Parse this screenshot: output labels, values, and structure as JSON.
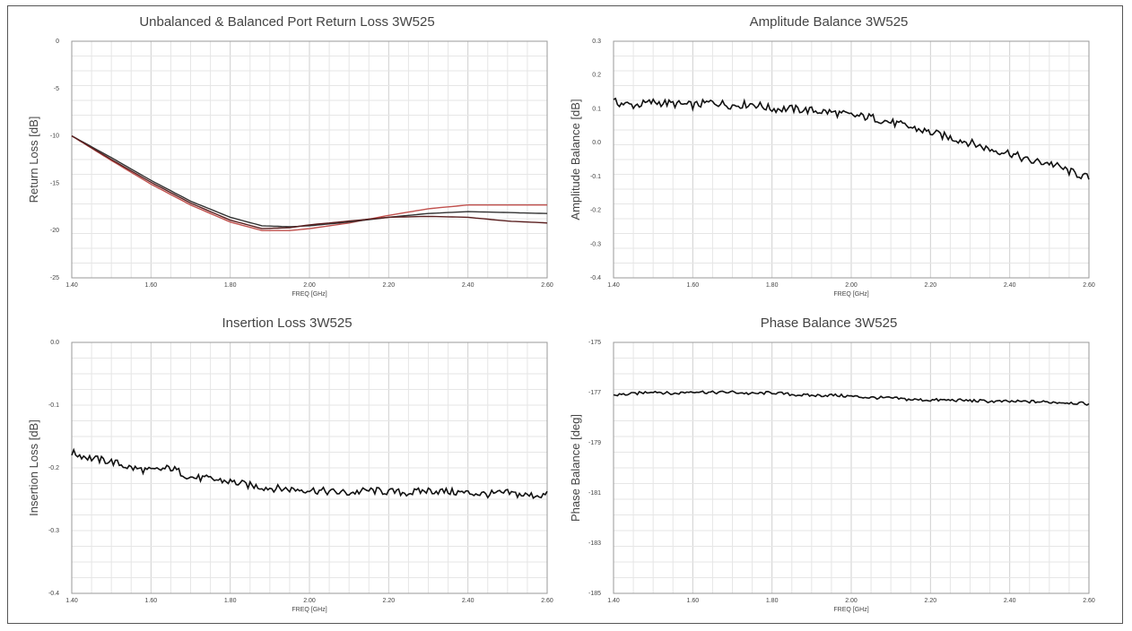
{
  "chart_data": [
    {
      "id": "rl",
      "type": "line",
      "title": "Unbalanced & Balanced Port Return Loss 3W525",
      "xlabel": "FREQ [GHz]",
      "ylabel": "Return Loss [dB]",
      "xlim": [
        1.4,
        2.6
      ],
      "ylim": [
        -25,
        0
      ],
      "xticks": [
        1.4,
        1.6,
        1.8,
        2.0,
        2.2,
        2.4,
        2.6
      ],
      "yticks": [
        0,
        -5,
        -10,
        -15,
        -20,
        -25
      ],
      "xtick_labels": [
        "1.40",
        "1.60",
        "1.80",
        "2.00",
        "2.20",
        "2.40",
        "2.60"
      ],
      "ytick_labels": [
        "0",
        "-5",
        "-10",
        "-15",
        "-20",
        "-25"
      ],
      "grid": true,
      "x": [
        1.4,
        1.5,
        1.6,
        1.7,
        1.8,
        1.88,
        1.95,
        2.0,
        2.1,
        2.2,
        2.3,
        2.4,
        2.5,
        2.6
      ],
      "series": [
        {
          "color": "#c0504d",
          "values": [
            -10.0,
            -12.6,
            -15.1,
            -17.3,
            -19.1,
            -20.0,
            -20.0,
            -19.8,
            -19.2,
            -18.4,
            -17.7,
            -17.3,
            -17.3,
            -17.3
          ]
        },
        {
          "color": "#333333",
          "values": [
            -10.0,
            -12.3,
            -14.7,
            -16.9,
            -18.6,
            -19.5,
            -19.6,
            -19.5,
            -19.1,
            -18.6,
            -18.2,
            -18.0,
            -18.1,
            -18.2
          ]
        },
        {
          "color": "#5a1f1f",
          "values": [
            -10.0,
            -12.5,
            -14.9,
            -17.1,
            -18.9,
            -19.8,
            -19.7,
            -19.4,
            -19.0,
            -18.6,
            -18.5,
            -18.6,
            -19.0,
            -19.2
          ]
        }
      ]
    },
    {
      "id": "ab",
      "type": "line",
      "title": "Amplitude Balance 3W525",
      "xlabel": "FREQ [GHz]",
      "ylabel": "Amplitude Balance [dB]",
      "xlim": [
        1.4,
        2.6
      ],
      "ylim": [
        -0.4,
        0.3
      ],
      "xticks": [
        1.4,
        1.6,
        1.8,
        2.0,
        2.2,
        2.4,
        2.6
      ],
      "yticks": [
        0.3,
        0.2,
        0.1,
        0.0,
        -0.1,
        -0.2,
        -0.3,
        -0.4
      ],
      "xtick_labels": [
        "1.40",
        "1.60",
        "1.80",
        "2.00",
        "2.20",
        "2.40",
        "2.60"
      ],
      "ytick_labels": [
        "0.3",
        "0.2",
        "0.1",
        "0.0",
        "-0.1",
        "-0.2",
        "-0.3",
        "-0.4"
      ],
      "grid": true,
      "x": [
        1.4,
        1.45,
        1.5,
        1.55,
        1.6,
        1.65,
        1.7,
        1.75,
        1.8,
        1.85,
        1.9,
        1.95,
        2.0,
        2.05,
        2.1,
        2.15,
        2.2,
        2.25,
        2.3,
        2.35,
        2.4,
        2.45,
        2.5,
        2.55,
        2.6
      ],
      "series": [
        {
          "color": "#111111",
          "values": [
            0.12,
            0.11,
            0.12,
            0.115,
            0.11,
            0.12,
            0.11,
            0.115,
            0.1,
            0.1,
            0.095,
            0.09,
            0.08,
            0.075,
            0.06,
            0.045,
            0.03,
            0.015,
            0.0,
            -0.02,
            -0.03,
            -0.055,
            -0.06,
            -0.085,
            -0.105
          ]
        }
      ]
    },
    {
      "id": "il",
      "type": "line",
      "title": "Insertion Loss 3W525",
      "xlabel": "FREQ [GHz]",
      "ylabel": "Insertion Loss [dB]",
      "xlim": [
        1.4,
        2.6
      ],
      "ylim": [
        -0.4,
        0.0
      ],
      "xticks": [
        1.4,
        1.6,
        1.8,
        2.0,
        2.2,
        2.4,
        2.6
      ],
      "yticks": [
        0.0,
        -0.1,
        -0.2,
        -0.3,
        -0.4
      ],
      "xtick_labels": [
        "1.40",
        "1.60",
        "1.80",
        "2.00",
        "2.20",
        "2.40",
        "2.60"
      ],
      "ytick_labels": [
        "0.0",
        "-0.1",
        "-0.2",
        "-0.3",
        "-0.4"
      ],
      "grid": true,
      "x": [
        1.4,
        1.45,
        1.5,
        1.55,
        1.6,
        1.65,
        1.7,
        1.75,
        1.8,
        1.85,
        1.9,
        1.95,
        2.0,
        2.05,
        2.1,
        2.15,
        2.2,
        2.25,
        2.3,
        2.35,
        2.4,
        2.45,
        2.5,
        2.55,
        2.6
      ],
      "series": [
        {
          "color": "#111111",
          "values": [
            -0.176,
            -0.185,
            -0.19,
            -0.2,
            -0.205,
            -0.2,
            -0.215,
            -0.218,
            -0.222,
            -0.228,
            -0.232,
            -0.234,
            -0.235,
            -0.238,
            -0.24,
            -0.236,
            -0.238,
            -0.24,
            -0.236,
            -0.238,
            -0.24,
            -0.242,
            -0.24,
            -0.244,
            -0.243
          ]
        }
      ]
    },
    {
      "id": "pb",
      "type": "line",
      "title": "Phase Balance 3W525",
      "xlabel": "FREQ [GHz]",
      "ylabel": "Phase Balance [deg]",
      "xlim": [
        1.4,
        2.6
      ],
      "ylim": [
        -185,
        -175
      ],
      "xticks": [
        1.4,
        1.6,
        1.8,
        2.0,
        2.2,
        2.4,
        2.6
      ],
      "yticks": [
        -175,
        -177,
        -179,
        -181,
        -183,
        -185
      ],
      "xtick_labels": [
        "1.40",
        "1.60",
        "1.80",
        "2.00",
        "2.20",
        "2.40",
        "2.60"
      ],
      "ytick_labels": [
        "-175",
        "-177",
        "-179",
        "-181",
        "-183",
        "-185"
      ],
      "grid": true,
      "x": [
        1.4,
        1.45,
        1.5,
        1.55,
        1.6,
        1.65,
        1.7,
        1.75,
        1.8,
        1.85,
        1.9,
        1.95,
        2.0,
        2.05,
        2.1,
        2.15,
        2.2,
        2.25,
        2.3,
        2.35,
        2.4,
        2.45,
        2.5,
        2.55,
        2.6
      ],
      "series": [
        {
          "color": "#111111",
          "values": [
            -177.1,
            -177.05,
            -176.95,
            -177.05,
            -176.95,
            -177.0,
            -176.98,
            -177.05,
            -177.0,
            -177.08,
            -177.12,
            -177.1,
            -177.15,
            -177.2,
            -177.22,
            -177.28,
            -177.3,
            -177.3,
            -177.32,
            -177.35,
            -177.36,
            -177.36,
            -177.38,
            -177.4,
            -177.45
          ]
        }
      ]
    }
  ]
}
